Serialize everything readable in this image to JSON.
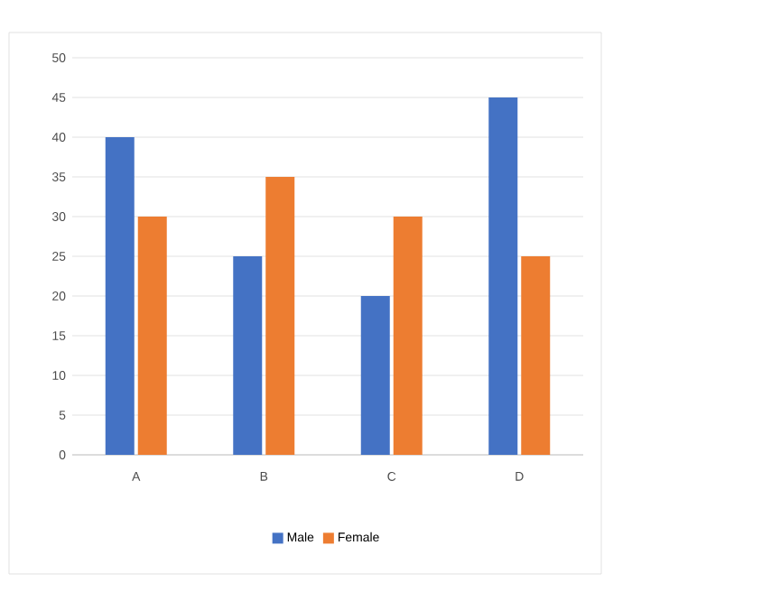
{
  "chart_data": {
    "type": "bar",
    "categories": [
      "A",
      "B",
      "C",
      "D"
    ],
    "series": [
      {
        "name": "Male",
        "color": "#4472c4",
        "values": [
          40,
          25,
          20,
          45
        ]
      },
      {
        "name": "Female",
        "color": "#ed7d31",
        "values": [
          30,
          35,
          30,
          25
        ]
      }
    ],
    "ylim": [
      0,
      50
    ],
    "yticks": [
      0,
      5,
      10,
      15,
      20,
      25,
      30,
      35,
      40,
      45,
      50
    ],
    "grid": "y",
    "legend": "bottom"
  }
}
